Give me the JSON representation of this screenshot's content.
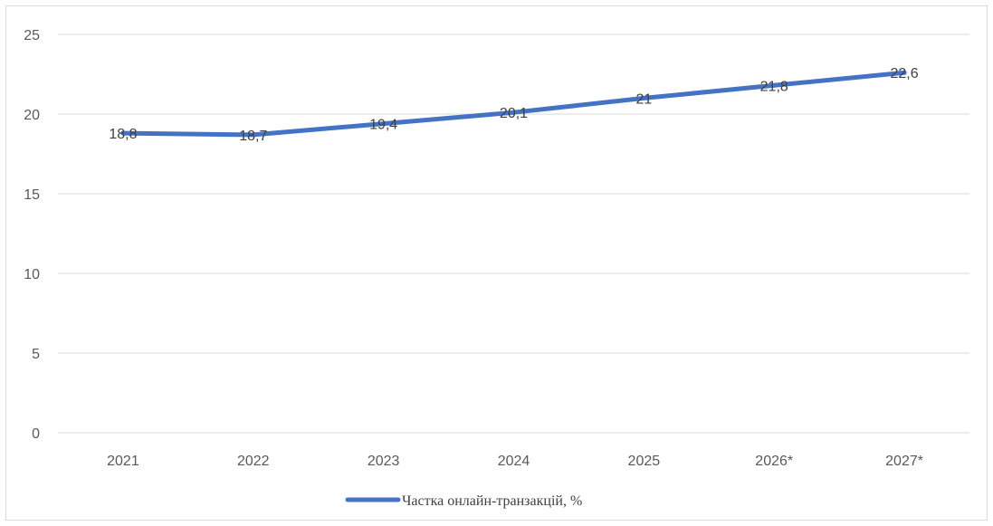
{
  "chart_data": {
    "type": "line",
    "title": "",
    "xlabel": "",
    "ylabel": "",
    "categories": [
      "2021",
      "2022",
      "2023",
      "2024",
      "2025",
      "2026*",
      "2027*"
    ],
    "series": [
      {
        "name": "Частка онлайн-транзакцій, %",
        "values": [
          18.8,
          18.7,
          19.4,
          20.1,
          21,
          21.8,
          22.6
        ],
        "data_labels": [
          "18,8",
          "18,7",
          "19,4",
          "20,1",
          "21",
          "21,8",
          "22,6"
        ],
        "color": "#4472c4"
      }
    ],
    "ylim": [
      0,
      25
    ],
    "yticks": [
      0,
      5,
      10,
      15,
      20,
      25
    ],
    "grid": true,
    "legend_position": "bottom"
  }
}
